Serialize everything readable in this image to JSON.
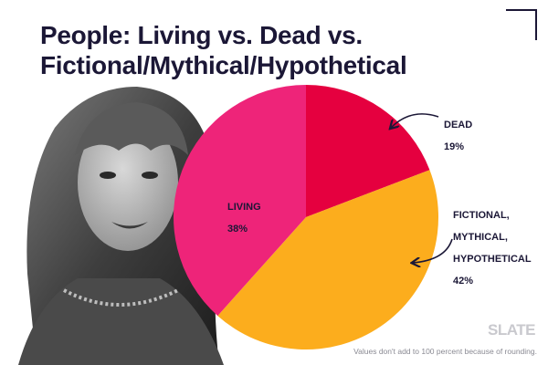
{
  "title_lines": [
    "People: Living vs. Dead vs.",
    "Fictional/Mythical/Hypothetical"
  ],
  "brand": "SLATE",
  "footnote": "Values don't add to 100 percent because of rounding.",
  "photo": {
    "description_icon": "portrait-photo"
  },
  "chart_data": {
    "type": "pie",
    "title": "People: Living vs. Dead vs. Fictional/Mythical/Hypothetical",
    "slices": [
      {
        "name": "DEAD",
        "label_lines": [
          "DEAD"
        ],
        "value_label": "19%",
        "value": 19,
        "color": "#e5003f"
      },
      {
        "name": "FICTIONAL, MYTHICAL, HYPOTHETICAL",
        "label_lines": [
          "FICTIONAL,",
          "MYTHICAL,",
          "HYPOTHETICAL"
        ],
        "value_label": "42%",
        "value": 42,
        "color": "#fcad1d"
      },
      {
        "name": "LIVING",
        "label_lines": [
          "LIVING"
        ],
        "value_label": "38%",
        "value": 38,
        "color": "#ee2479"
      }
    ],
    "start_angle_deg": 0,
    "direction": "clockwise"
  }
}
